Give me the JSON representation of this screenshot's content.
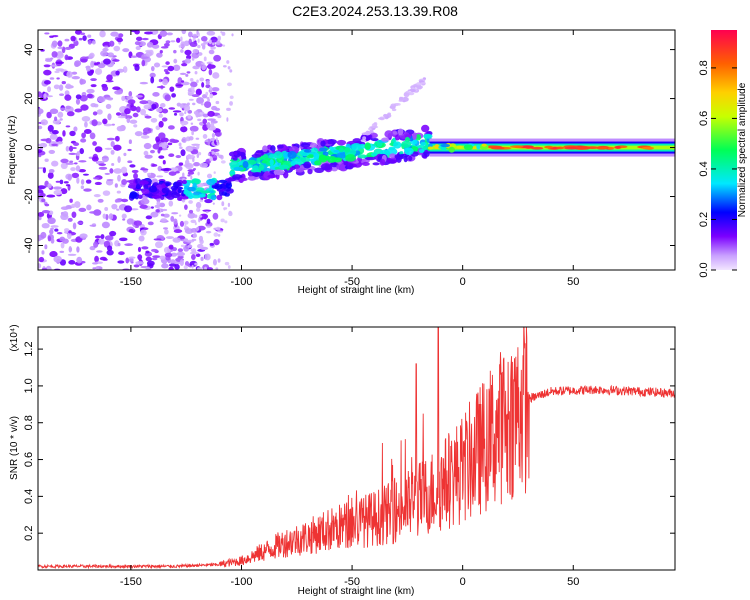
{
  "title": "C2E3.2024.253.13.39.R08",
  "chart_data": [
    {
      "type": "heatmap",
      "title": "C2E3.2024.253.13.39.R08",
      "xlabel": "Height of straight line (km)",
      "ylabel": "Frequency (Hz)",
      "xlim": [
        -192,
        96
      ],
      "ylim": [
        -50,
        48
      ],
      "xticks": [
        -150,
        -100,
        -50,
        0,
        50
      ],
      "yticks": [
        -40,
        -20,
        0,
        20,
        40
      ],
      "colorbar": {
        "label": "Normalized spectral amplitude",
        "range": [
          0,
          0.95
        ],
        "ticks": [
          0.0,
          0.2,
          0.4,
          0.6,
          0.8
        ]
      },
      "features": [
        {
          "description": "band",
          "x_range": [
            -192,
            -110
          ],
          "frequency": -17
        },
        {
          "description": "band",
          "x_range": [
            -105,
            -15
          ],
          "frequency_start": -8,
          "frequency_end": 2
        },
        {
          "description": "band",
          "x_range": [
            -15,
            96
          ],
          "frequency": 0
        }
      ]
    },
    {
      "type": "line",
      "xlabel": "Height of straight line (km)",
      "ylabel": "SNR (10 * v/v)",
      "multiplier_label": "(x10⁴)",
      "xlim": [
        -192,
        96
      ],
      "ylim": [
        0.0,
        1.32
      ],
      "xticks": [
        -150,
        -100,
        -50,
        0,
        50
      ],
      "yticks": [
        0.2,
        0.4,
        0.6,
        0.8,
        1.0,
        1.2
      ],
      "color": "#ee3333",
      "envelope": {
        "x": [
          -192,
          -130,
          -110,
          -100,
          -90,
          -80,
          -70,
          -60,
          -50,
          -40,
          -30,
          -20,
          -10,
          0,
          10,
          20,
          30,
          40,
          60,
          80,
          96
        ],
        "y": [
          0.02,
          0.02,
          0.03,
          0.05,
          0.1,
          0.15,
          0.18,
          0.22,
          0.25,
          0.28,
          0.32,
          0.38,
          0.45,
          0.55,
          0.68,
          0.82,
          0.93,
          0.97,
          0.98,
          0.97,
          0.96
        ]
      },
      "peaks": [
        {
          "x": -21,
          "y": 1.12
        },
        {
          "x": -11,
          "y": 1.32
        }
      ]
    }
  ]
}
